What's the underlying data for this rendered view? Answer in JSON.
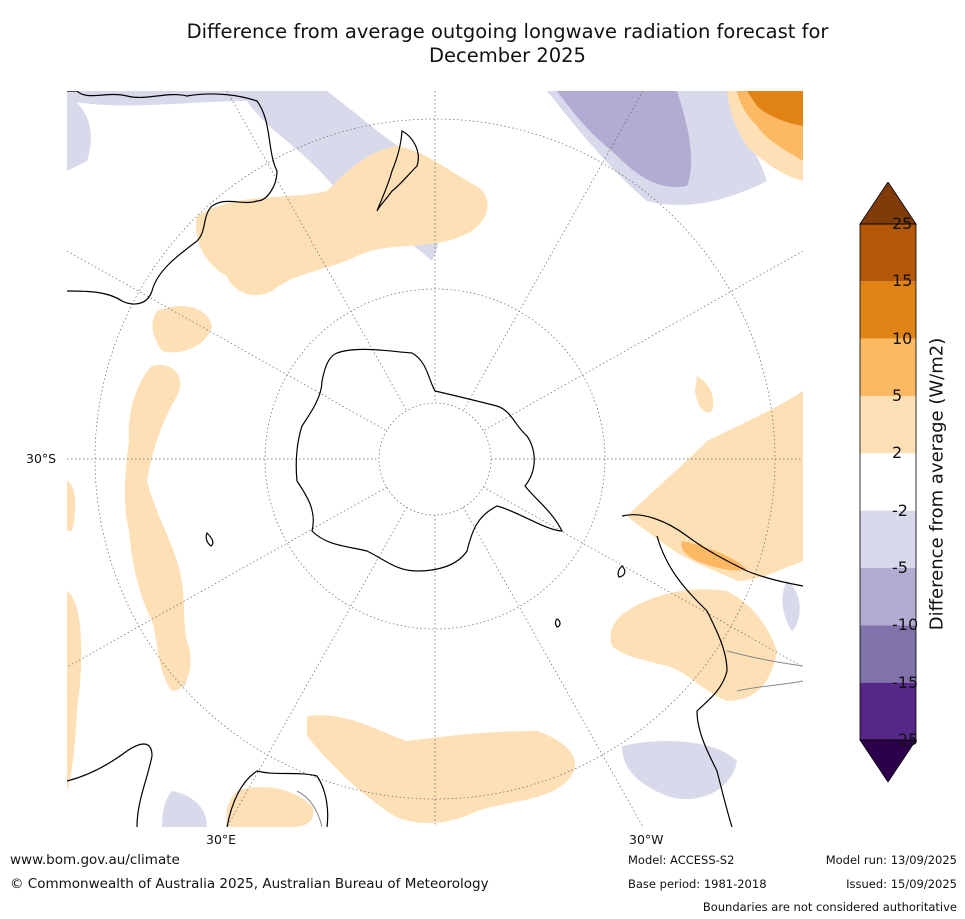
{
  "title_line1": "Difference from average outgoing longwave radiation forecast for",
  "title_line2": "December 2025",
  "labels": {
    "lat_30s": "30°S",
    "lon_30e": "30°E",
    "lon_30w": "30°W"
  },
  "legend": {
    "title": "Difference from average (W/m2)",
    "bins": [
      {
        "label": "25",
        "color": "#7f3b08"
      },
      {
        "label": "15",
        "color": "#b35806"
      },
      {
        "label": "10",
        "color": "#e08214"
      },
      {
        "label": "5",
        "color": "#fdb863"
      },
      {
        "label": "2",
        "color": "#fee0b6"
      },
      {
        "label": "-2",
        "color": "#ffffff"
      },
      {
        "label": "-5",
        "color": "#d8daeb"
      },
      {
        "label": "-10",
        "color": "#b2abd2"
      },
      {
        "label": "-15",
        "color": "#8073ac"
      },
      {
        "label": "-25",
        "color": "#542788"
      }
    ],
    "under_color": "#2d004b",
    "over_color": "#7f3b08"
  },
  "footer": {
    "website": "www.bom.gov.au/climate",
    "copyright": "© Commonwealth of Australia 2025, Australian Bureau of Meteorology",
    "model": "Model: ACCESS-S2",
    "base_period": "Base period: 1981-2018",
    "model_run": "Model run: 13/09/2025",
    "issued": "Issued: 15/09/2025",
    "disclaimer": "Boundaries are not considered authoritative"
  }
}
